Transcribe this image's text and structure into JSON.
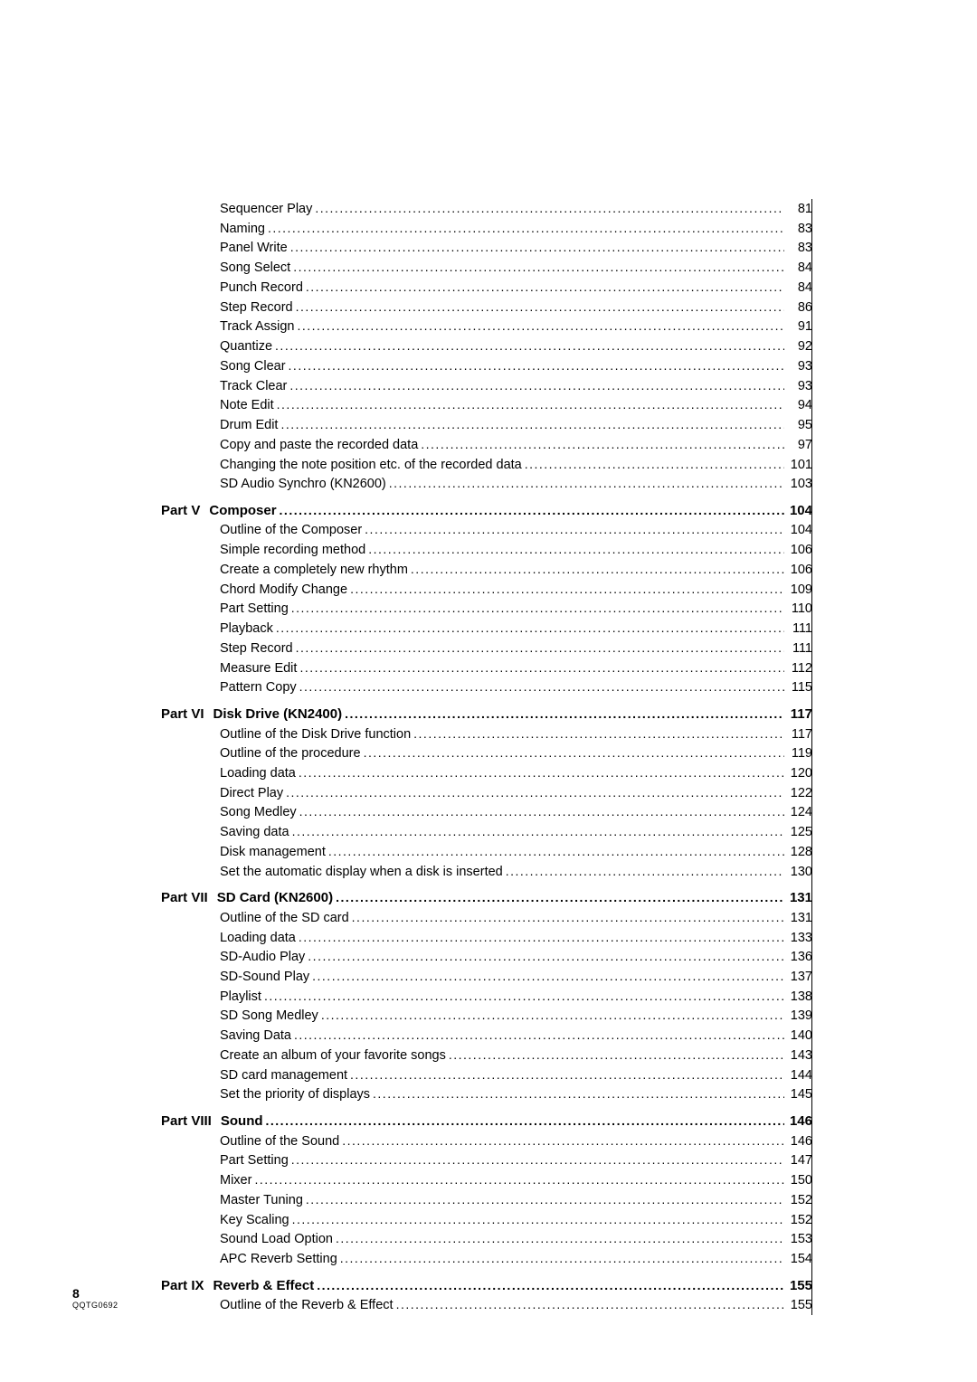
{
  "toc": {
    "pre_items": [
      {
        "label": "Sequencer Play",
        "page": "81"
      },
      {
        "label": "Naming",
        "page": "83"
      },
      {
        "label": "Panel Write",
        "page": "83"
      },
      {
        "label": "Song Select",
        "page": "84"
      },
      {
        "label": "Punch Record",
        "page": "84"
      },
      {
        "label": "Step Record",
        "page": "86"
      },
      {
        "label": "Track Assign",
        "page": "91"
      },
      {
        "label": "Quantize",
        "page": "92"
      },
      {
        "label": "Song Clear",
        "page": "93"
      },
      {
        "label": "Track Clear",
        "page": "93"
      },
      {
        "label": "Note Edit",
        "page": "94"
      },
      {
        "label": "Drum Edit",
        "page": "95"
      },
      {
        "label": "Copy and paste the recorded data",
        "page": "97"
      },
      {
        "label": "Changing the note position etc. of the recorded data",
        "page": "101"
      },
      {
        "label": "SD Audio Synchro (KN2600)",
        "page": "103"
      }
    ],
    "sections": [
      {
        "prefix": "Part V",
        "title": "Composer",
        "page": "104",
        "items": [
          {
            "label": "Outline of the Composer",
            "page": "104"
          },
          {
            "label": "Simple recording method",
            "page": "106"
          },
          {
            "label": "Create a completely new rhythm",
            "page": "106"
          },
          {
            "label": "Chord Modify Change",
            "page": "109"
          },
          {
            "label": "Part Setting",
            "page": "110"
          },
          {
            "label": "Playback",
            "page": "111"
          },
          {
            "label": "Step Record",
            "page": "111"
          },
          {
            "label": "Measure Edit",
            "page": "112"
          },
          {
            "label": "Pattern Copy",
            "page": "115"
          }
        ]
      },
      {
        "prefix": "Part VI",
        "title": "Disk Drive (KN2400)",
        "page": "117",
        "items": [
          {
            "label": "Outline of the Disk Drive function",
            "page": "117"
          },
          {
            "label": "Outline of the procedure",
            "page": "119"
          },
          {
            "label": "Loading data",
            "page": "120"
          },
          {
            "label": "Direct Play",
            "page": "122"
          },
          {
            "label": "Song Medley",
            "page": "124"
          },
          {
            "label": "Saving data",
            "page": "125"
          },
          {
            "label": "Disk management",
            "page": "128"
          },
          {
            "label": "Set the automatic display when a disk is inserted",
            "page": "130"
          }
        ]
      },
      {
        "prefix": "Part VII",
        "title": "SD Card (KN2600)",
        "page": "131",
        "items": [
          {
            "label": "Outline of the SD card",
            "page": "131"
          },
          {
            "label": "Loading data",
            "page": "133"
          },
          {
            "label": "SD-Audio Play",
            "page": "136"
          },
          {
            "label": "SD-Sound Play",
            "page": "137"
          },
          {
            "label": "Playlist",
            "page": "138"
          },
          {
            "label": "SD Song Medley",
            "page": "139"
          },
          {
            "label": "Saving Data",
            "page": "140"
          },
          {
            "label": "Create an album of your favorite songs",
            "page": "143"
          },
          {
            "label": "SD card management",
            "page": "144"
          },
          {
            "label": "Set the priority of displays",
            "page": "145"
          }
        ]
      },
      {
        "prefix": "Part VIII",
        "title": "Sound",
        "page": "146",
        "items": [
          {
            "label": "Outline of the Sound",
            "page": "146"
          },
          {
            "label": "Part Setting",
            "page": "147"
          },
          {
            "label": "Mixer",
            "page": "150"
          },
          {
            "label": "Master Tuning",
            "page": "152"
          },
          {
            "label": "Key Scaling",
            "page": "152"
          },
          {
            "label": "Sound Load Option",
            "page": "153"
          },
          {
            "label": "APC Reverb Setting",
            "page": "154"
          }
        ]
      },
      {
        "prefix": "Part IX",
        "title": "Reverb & Effect",
        "page": "155",
        "items": [
          {
            "label": "Outline of the Reverb & Effect",
            "page": "155"
          }
        ]
      }
    ]
  },
  "footer": {
    "page_number": "8",
    "doc_code": "QQTG0692"
  }
}
